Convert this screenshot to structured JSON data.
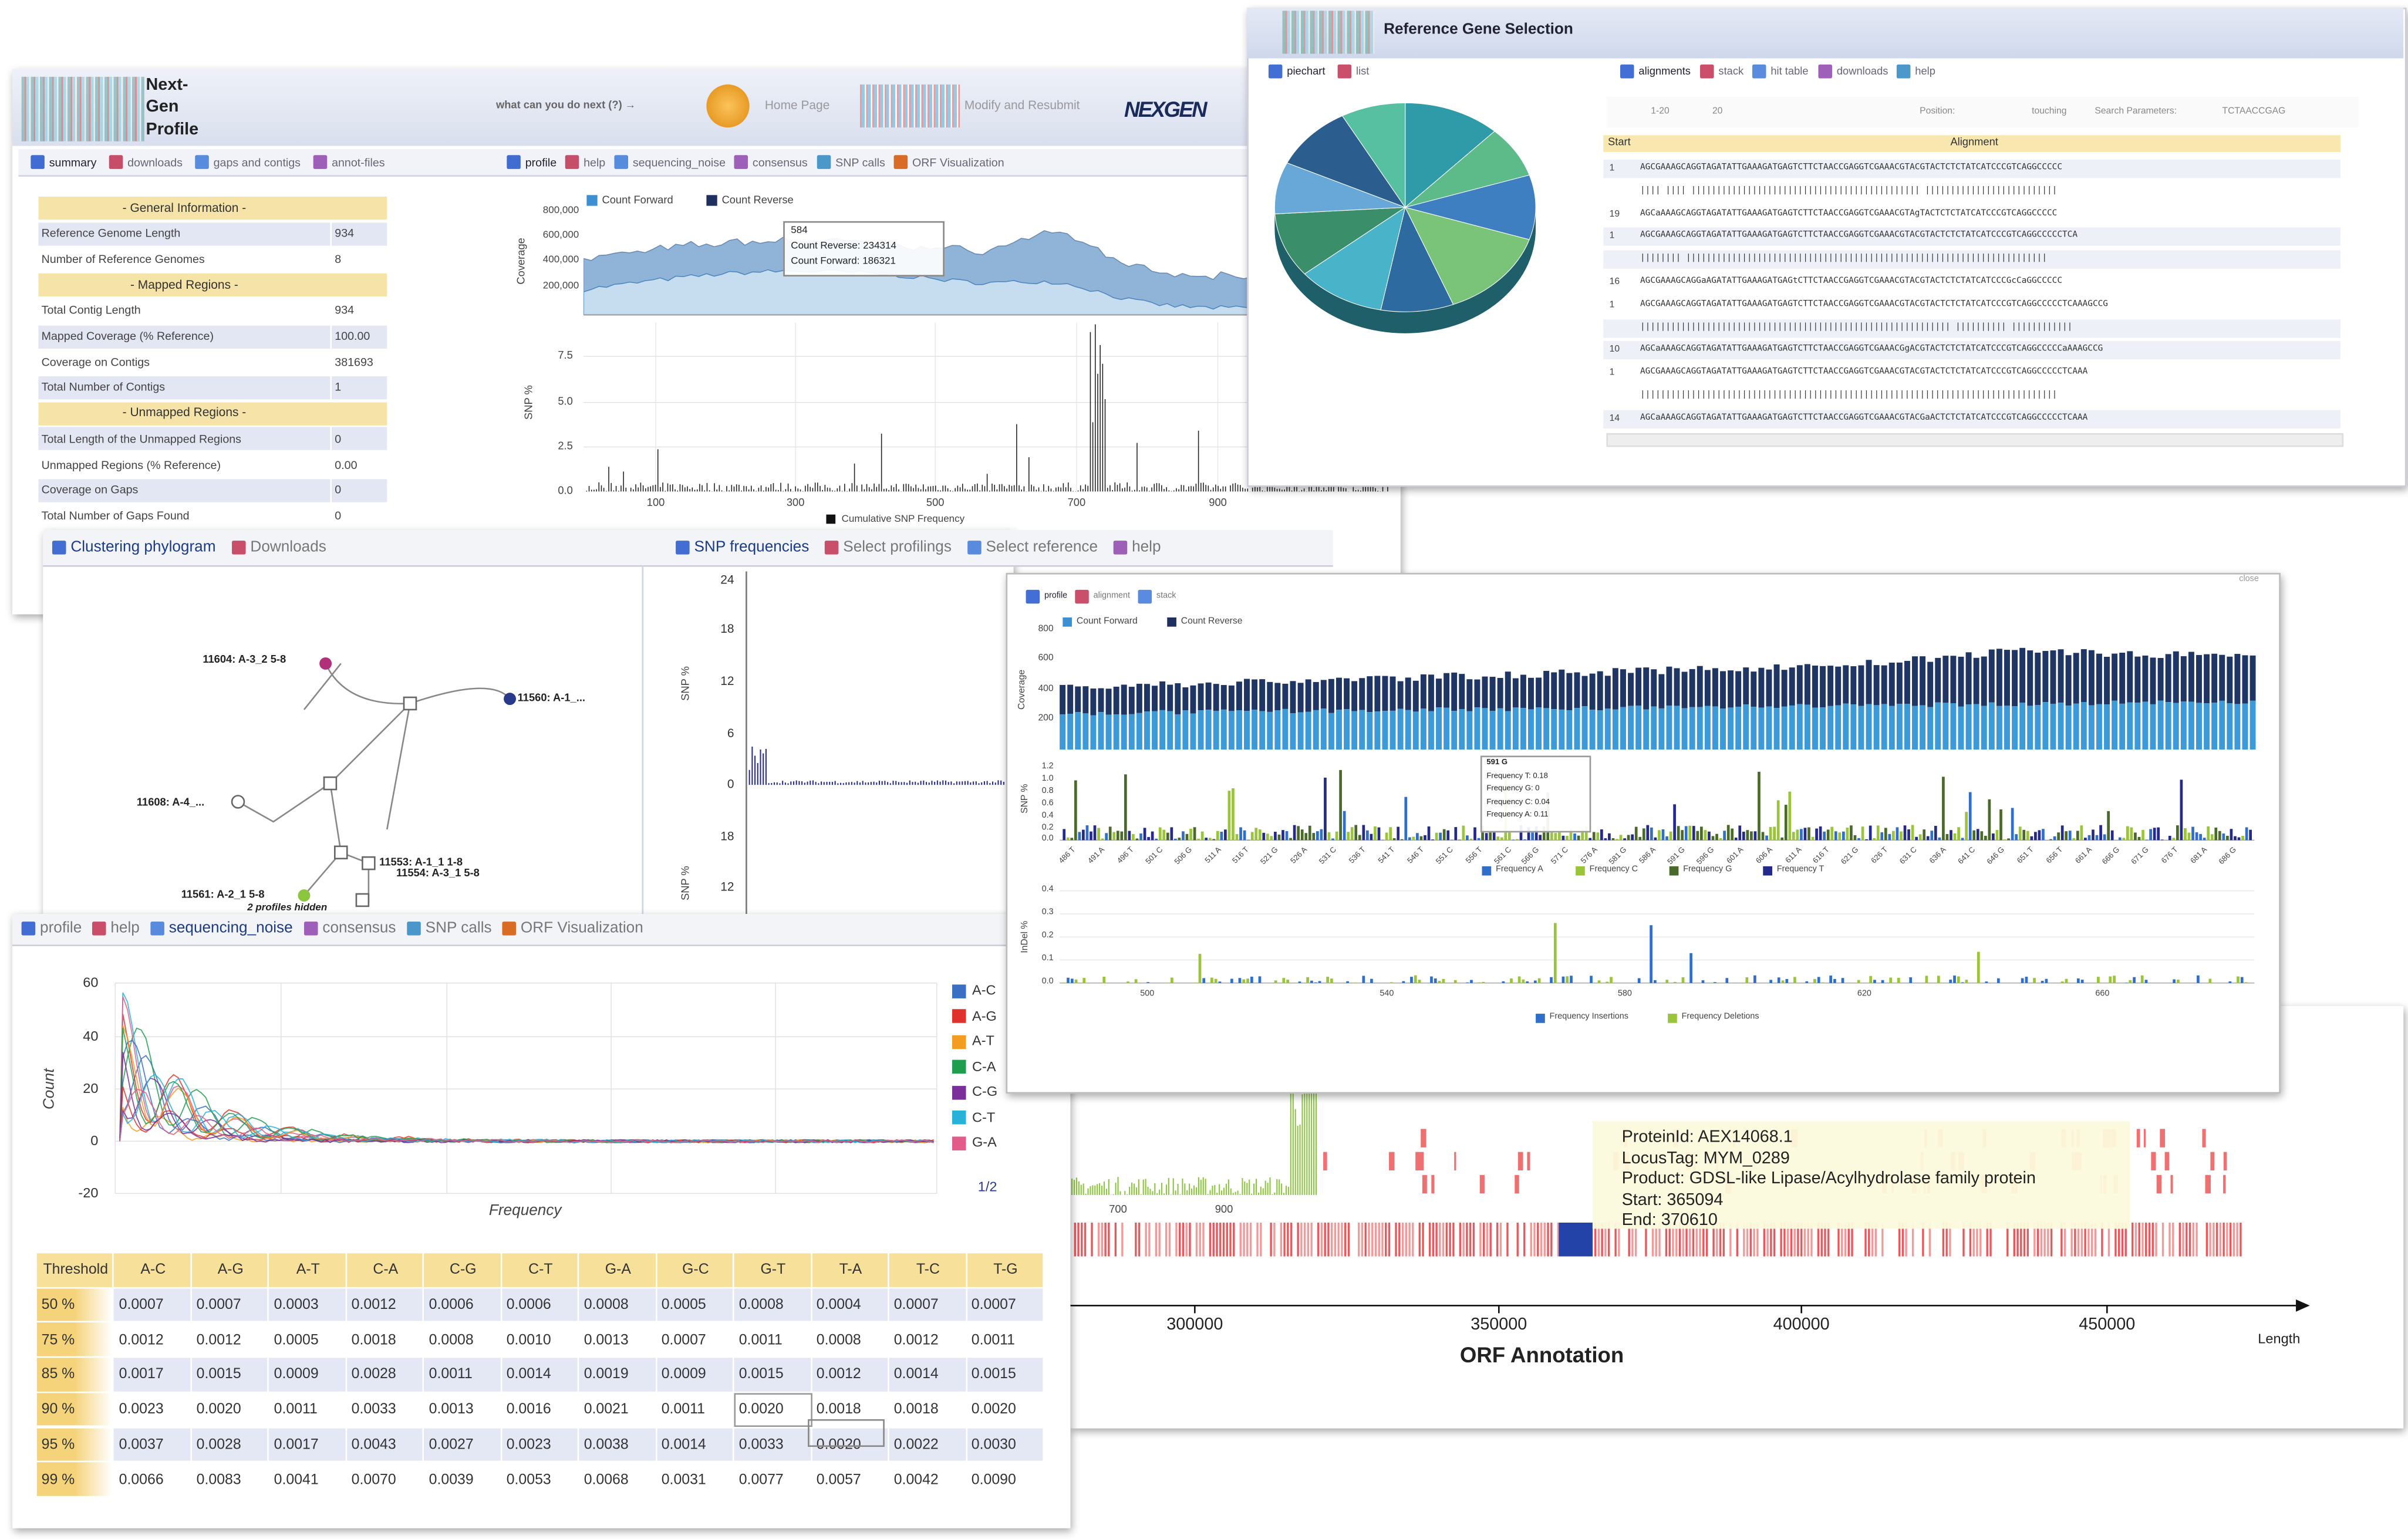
{
  "profile_window": {
    "logo": "Next-Gen Profile",
    "nav_prompt": "what can you do next (?) →",
    "nav_links": [
      "Home Page",
      "Modify and Resubmit"
    ],
    "brand": "NEXGEN",
    "summary_tabs": [
      "summary",
      "downloads",
      "gaps and contigs",
      "annot-files"
    ],
    "summary_rows": [
      [
        "- General Information -"
      ],
      [
        "Reference Genome Length",
        "934"
      ],
      [
        "Number of Reference Genomes",
        "8"
      ],
      [
        "- Mapped Regions -"
      ],
      [
        "Total Contig Length",
        "934"
      ],
      [
        "Mapped Coverage (% Reference)",
        "100.00"
      ],
      [
        "Coverage on Contigs",
        "381693"
      ],
      [
        "Total Number of Contigs",
        "1"
      ],
      [
        "- Unmapped Regions -"
      ],
      [
        "Total Length of the Unmapped Regions",
        "0"
      ],
      [
        "Unmapped Regions (% Reference)",
        "0.00"
      ],
      [
        "Coverage on Gaps",
        "0"
      ],
      [
        "Total Number of Gaps Found",
        "0"
      ]
    ],
    "chart_tabs": [
      "profile",
      "help",
      "sequencing_noise",
      "consensus",
      "SNP calls",
      "ORF Visualization"
    ],
    "coverage_legend": [
      "Count Forward",
      "Count Reverse"
    ],
    "coverage_axis_label": "Coverage",
    "coverage_ticks": [
      "800,000",
      "600,000",
      "400,000",
      "200,000"
    ],
    "tooltip": [
      "584",
      "Count Reverse: 234314",
      "Count Forward: 186321"
    ],
    "snp_axis_label": "SNP %",
    "snp_ticks": [
      "7.5",
      "5.0",
      "2.5",
      "0.0"
    ],
    "snp_x_ticks": [
      "100",
      "300",
      "500",
      "700",
      "900"
    ],
    "snp_legend": "Cumulative SNP Frequency"
  },
  "reference_window": {
    "title": "Reference Gene Selection",
    "view_tabs": [
      "piechart",
      "list"
    ],
    "tabs": [
      "alignments",
      "stack",
      "hit table",
      "downloads",
      "help"
    ],
    "toolbar": [
      "1-20",
      "20",
      "Position:",
      "touching",
      "Search Parameters:",
      "TCTAACCGAG"
    ],
    "columns": [
      "Start",
      "Alignment"
    ],
    "rows": [
      {
        "start": 1,
        "sequence": "AGCGAAAGCAGGTAGATATTGAAAGATGAGTCTTCTAACCGAGGTCGAAACGTACGTACTCTCTATCATCCCGTCAGGCCCCC"
      },
      {
        "sequence": "|||| |||| ||||||||||||||||||||||||||||||||||||||||||||| ||||||||||||||||||||||||||"
      },
      {
        "start": 19,
        "sequence": "AGCaAAAGCAGGTAGATATTGAAAGATGAGTCTTCTAACCGAGGTCGAAACGTAgTACTCTCTATCATCCCGTCAGGCCCCC"
      },
      {
        "start": 1,
        "sequence": "AGCGAAAGCAGGTAGATATTGAAAGATGAGTCTTCTAACCGAGGTCGAAACGTACGTACTCTCTATCATCCCGTCAGGCCCCCTCA"
      },
      {
        "sequence": "|||||||| |||||||||||||||||||||||||||||||||||||||||||||||||||||||||||||||||||||||"
      },
      {
        "start": 16,
        "sequence": "AGCGAAAGCAGGaAGATATTGAAAGATGAGtCTTCTAACCGAGGTCGAAACGTACGTACTCTCTATCATCCCGcCaGGCCCCC"
      },
      {
        "start": 1,
        "sequence": "AGCGAAAGCAGGTAGATATTGAAAGATGAGTCTTCTAACCGAGGTCGAAACGTACGTACTCTCTATCATCCCGTCAGGCCCCCTCAAAGCCG"
      },
      {
        "sequence": "||||||||||||||||||||||||||||||||||||||||||||||||||||||||||||| |||||||||| ||||||||||||"
      },
      {
        "start": 10,
        "sequence": "AGCaAAAGCAGGTAGATATTGAAAGATGAGTCTTCTAACCGAGGTCGAAACGgACGTACTCTCTATCATCCCGTCAGGCCCCCaAAAGCCG"
      },
      {
        "start": 1,
        "sequence": "AGCGAAAGCAGGTAGATATTGAAAGATGAGTCTTCTAACCGAGGTCGAAACGTACGTACTCTCTATCATCCCGTCAGGCCCCCTCAAA"
      },
      {
        "sequence": "||||||||||||||||||||||||||||||||||||||||||||||||||||||||||||||||||||||||||||||||||"
      },
      {
        "start": 14,
        "sequence": "AGCaAAAGCAGGTAGATATTGAAAGATGAGTCTTCTAACCGAGGTCGAAACGTACGaACTCTCTATCATCCCGTCAGGCCCCCTCAAA"
      }
    ]
  },
  "cluster_panel": {
    "tabs": [
      "Clustering phylogram",
      "Downloads"
    ],
    "nodes": [
      "11604: A-3_2 5-8",
      "11560: A-1_...",
      "11608: A-4_...",
      "11553: A-1_1 1-8",
      "11554: A-3_1 5-8",
      "11561: A-2_1 5-8"
    ],
    "note": "2 profiles hidden"
  },
  "snp_frequency_panel": {
    "tabs": [
      "SNP frequencies",
      "Select profilings",
      "Select reference",
      "help"
    ],
    "axis_label": "SNP %",
    "ticks": [
      "24",
      "18",
      "12",
      "6",
      "0",
      "18",
      "12"
    ]
  },
  "noise_panel": {
    "tabs": [
      "profile",
      "help",
      "sequencing_noise",
      "consensus",
      "SNP calls",
      "ORF Visualization"
    ],
    "axis_label": "Count",
    "x_label": "Frequency",
    "ticks": [
      "60",
      "40",
      "20",
      "0",
      "-20"
    ],
    "legend": [
      "A-C",
      "A-G",
      "A-T",
      "C-A",
      "C-G",
      "C-T",
      "G-A"
    ],
    "pager": "1/2",
    "table": {
      "header": [
        "Threshold",
        "A-C",
        "A-G",
        "A-T",
        "C-A",
        "C-G",
        "C-T",
        "G-A",
        "G-C",
        "G-T",
        "T-A",
        "T-C",
        "T-G"
      ],
      "rows": [
        [
          "50 %",
          "0.0007",
          "0.0007",
          "0.0003",
          "0.0012",
          "0.0006",
          "0.0006",
          "0.0008",
          "0.0005",
          "0.0008",
          "0.0004",
          "0.0007",
          "0.0007"
        ],
        [
          "75 %",
          "0.0012",
          "0.0012",
          "0.0005",
          "0.0018",
          "0.0008",
          "0.0010",
          "0.0013",
          "0.0007",
          "0.0011",
          "0.0008",
          "0.0012",
          "0.0011"
        ],
        [
          "85 %",
          "0.0017",
          "0.0015",
          "0.0009",
          "0.0028",
          "0.0011",
          "0.0014",
          "0.0019",
          "0.0009",
          "0.0015",
          "0.0012",
          "0.0014",
          "0.0015"
        ],
        [
          "90 %",
          "0.0023",
          "0.0020",
          "0.0011",
          "0.0033",
          "0.0013",
          "0.0016",
          "0.0021",
          "0.0011",
          "0.0020",
          "0.0018",
          "0.0018",
          "0.0020"
        ],
        [
          "95 %",
          "0.0037",
          "0.0028",
          "0.0017",
          "0.0043",
          "0.0027",
          "0.0023",
          "0.0038",
          "0.0014",
          "0.0033",
          "0.0020",
          "0.0022",
          "0.0030"
        ],
        [
          "99 %",
          "0.0066",
          "0.0083",
          "0.0041",
          "0.0070",
          "0.0039",
          "0.0053",
          "0.0068",
          "0.0031",
          "0.0077",
          "0.0057",
          "0.0042",
          "0.0090"
        ]
      ]
    }
  },
  "detail_panel": {
    "tabs": [
      "profile",
      "alignment",
      "stack"
    ],
    "close": "close",
    "coverage_legend": [
      "Count Forward",
      "Count Reverse"
    ],
    "coverage_axis_label": "Coverage",
    "coverage_ticks": [
      "800",
      "600",
      "400",
      "200"
    ],
    "snp_axis_label": "SNP %",
    "snp_ticks": [
      "1.2",
      "1.0",
      "0.8",
      "0.6",
      "0.4",
      "0.2",
      "0.0"
    ],
    "positions": [
      "486 T",
      "491 A",
      "496 T",
      "501 C",
      "506 G",
      "511 A",
      "516 T",
      "521 G",
      "526 A",
      "531 C",
      "536 T",
      "541 T",
      "546 T",
      "551 C",
      "556 T",
      "561 C",
      "566 G",
      "571 C",
      "576 A",
      "581 G",
      "586 A",
      "591 G",
      "596 G",
      "601 A",
      "606 A",
      "611 A",
      "616 T",
      "621 G",
      "626 T",
      "631 C",
      "636 A",
      "641 C",
      "646 G",
      "651 T",
      "656 T",
      "661 A",
      "666 G",
      "671 G",
      "676 T",
      "681 A",
      "686 G"
    ],
    "tooltip": [
      "591 G",
      "Frequency T: 0.18",
      "Frequency G: 0",
      "Frequency C: 0.04",
      "Frequency A: 0.11"
    ],
    "snp_legend": [
      "Frequency A",
      "Frequency C",
      "Frequency G",
      "Frequency T"
    ],
    "indel_axis_label": "InDel %",
    "indel_ticks": [
      "0.4",
      "0.3",
      "0.2",
      "0.1",
      "0.0"
    ],
    "indel_x_ticks": [
      "500",
      "540",
      "580",
      "620",
      "660"
    ],
    "indel_legend": [
      "Frequency Insertions",
      "Frequency Deletions"
    ]
  },
  "orf_panel": {
    "background_ticks": [
      "700",
      "900"
    ],
    "tooltip": [
      "ProteinId: AEX14068.1",
      "LocusTag: MYM_0289",
      "Product: GDSL-like Lipase/Acylhydrolase family protein",
      "Start: 365094",
      "End: 370610"
    ],
    "x_ticks": [
      "300000",
      "350000",
      "400000",
      "450000"
    ],
    "title": "ORF Annotation",
    "axis_label": "Length"
  }
}
